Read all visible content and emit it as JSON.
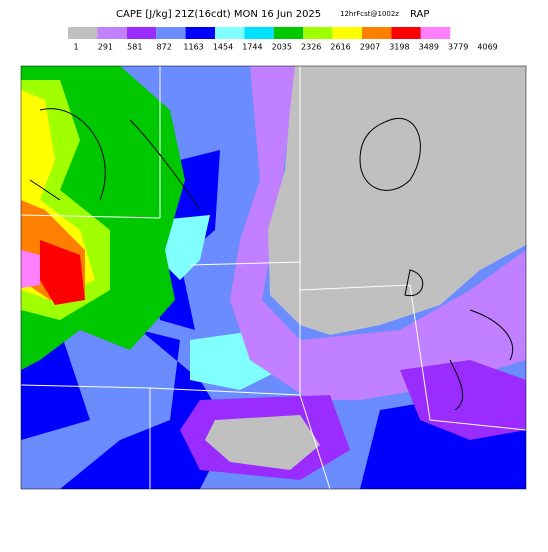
{
  "title": "CAPE [J/kg] 21Z(16cdt) MON 16 Jun 2025",
  "forecast": "12hrFcst@1002z",
  "model": "RAP",
  "colorbar": {
    "colors": [
      "#c0c0c0",
      "#c080ff",
      "#9a2cff",
      "#6a8cff",
      "#0000ff",
      "#80ffff",
      "#00e0ff",
      "#00c800",
      "#a0ff00",
      "#ffff00",
      "#ff8000",
      "#ff0000",
      "#ff80ff"
    ],
    "labels": [
      1,
      291,
      581,
      872,
      1163,
      1454,
      1744,
      2035,
      2326,
      2616,
      2907,
      3198,
      3489,
      3779,
      4069
    ]
  }
}
